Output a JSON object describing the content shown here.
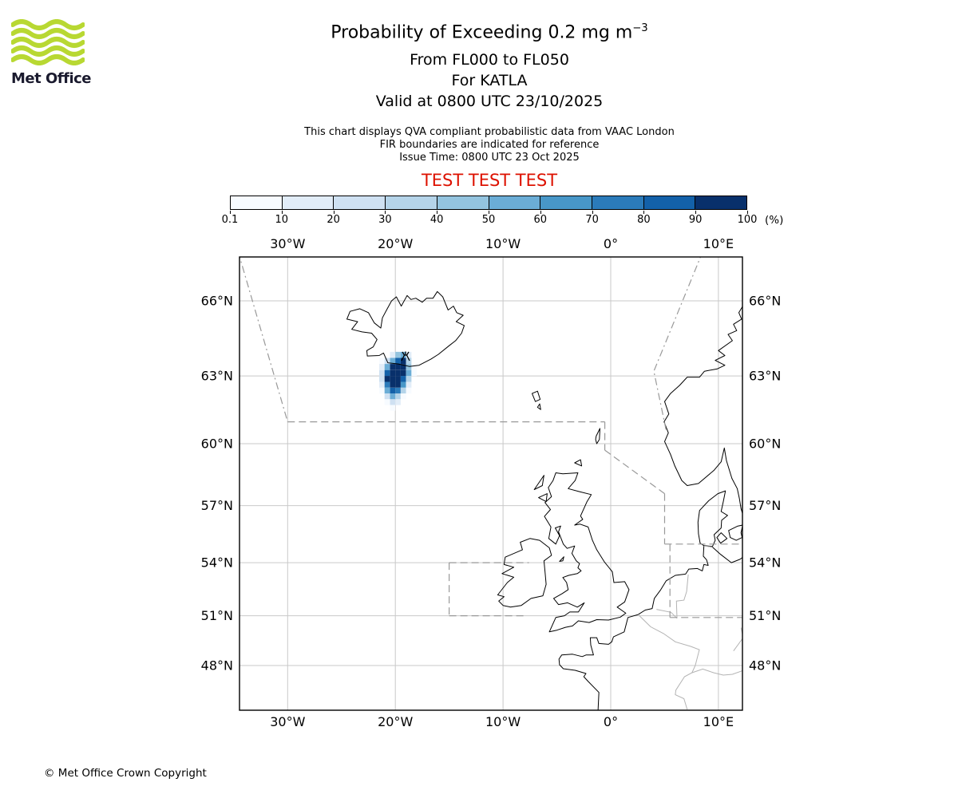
{
  "header": {
    "title_main": "Probability of Exceeding 0.2 mg m",
    "title_sup": "−3",
    "line2": "From FL000 to FL050",
    "line3": "For KATLA",
    "line4": "Valid at 0800 UTC 23/10/2025",
    "note1": "This chart displays QVA compliant probabilistic data from VAAC London",
    "note2": "FIR boundaries are indicated for reference",
    "note3": "Issue Time: 0800 UTC 23 Oct 2025",
    "test_banner": "TEST TEST TEST",
    "test_color": "#dd1100"
  },
  "logo": {
    "text": "Met Office",
    "wave_color": "#b8d832",
    "text_color": "#1a1a2e"
  },
  "colorbar": {
    "tick_labels": [
      "0.1",
      "10",
      "20",
      "30",
      "40",
      "50",
      "60",
      "70",
      "80",
      "90",
      "100"
    ],
    "unit_label": "(%)",
    "colors": [
      "#f7fbff",
      "#e2edf8",
      "#cfe1f2",
      "#b5d4e9",
      "#94c4df",
      "#6badd6",
      "#4897c8",
      "#2b7bba",
      "#1361a9",
      "#08306b"
    ]
  },
  "map": {
    "lon_ticks": [
      {
        "deg": -30,
        "label": "30°W"
      },
      {
        "deg": -20,
        "label": "20°W"
      },
      {
        "deg": -10,
        "label": "10°W"
      },
      {
        "deg": 0,
        "label": "0°"
      },
      {
        "deg": 10,
        "label": "10°E"
      }
    ],
    "lat_ticks": [
      {
        "deg": 66,
        "label": "66°N"
      },
      {
        "deg": 63,
        "label": "63°N"
      },
      {
        "deg": 60,
        "label": "60°N"
      },
      {
        "deg": 57,
        "label": "57°N"
      },
      {
        "deg": 54,
        "label": "54°N"
      },
      {
        "deg": 51,
        "label": "51°N"
      },
      {
        "deg": 48,
        "label": "48°N"
      }
    ],
    "colors": {
      "grid": "#c9c9c9",
      "fir": "#999999",
      "country_border": "#b3b3b3",
      "coast": "#000000"
    },
    "volcano": {
      "lon": -19.05,
      "lat": 63.8
    },
    "hazard_grid": {
      "lon_start": -22.0,
      "lon_step": 0.5,
      "lat_start": 64.0,
      "lat_step": -0.25,
      "levels": [
        [
          0,
          0,
          0,
          2,
          5,
          6,
          2,
          0
        ],
        [
          0,
          1,
          3,
          6,
          9,
          10,
          4,
          0
        ],
        [
          0,
          2,
          6,
          10,
          10,
          10,
          5,
          1
        ],
        [
          0,
          3,
          9,
          10,
          10,
          10,
          6,
          1
        ],
        [
          0,
          3,
          10,
          10,
          10,
          9,
          4,
          0
        ],
        [
          0,
          2,
          8,
          10,
          10,
          7,
          2,
          0
        ],
        [
          0,
          1,
          6,
          9,
          8,
          4,
          1,
          0
        ],
        [
          0,
          0,
          3,
          6,
          4,
          1,
          0,
          0
        ],
        [
          0,
          0,
          1,
          3,
          2,
          0,
          0,
          0
        ],
        [
          0,
          0,
          0,
          1,
          0,
          0,
          0,
          0
        ]
      ]
    }
  },
  "footer": {
    "copyright": "© Met Office Crown Copyright"
  }
}
